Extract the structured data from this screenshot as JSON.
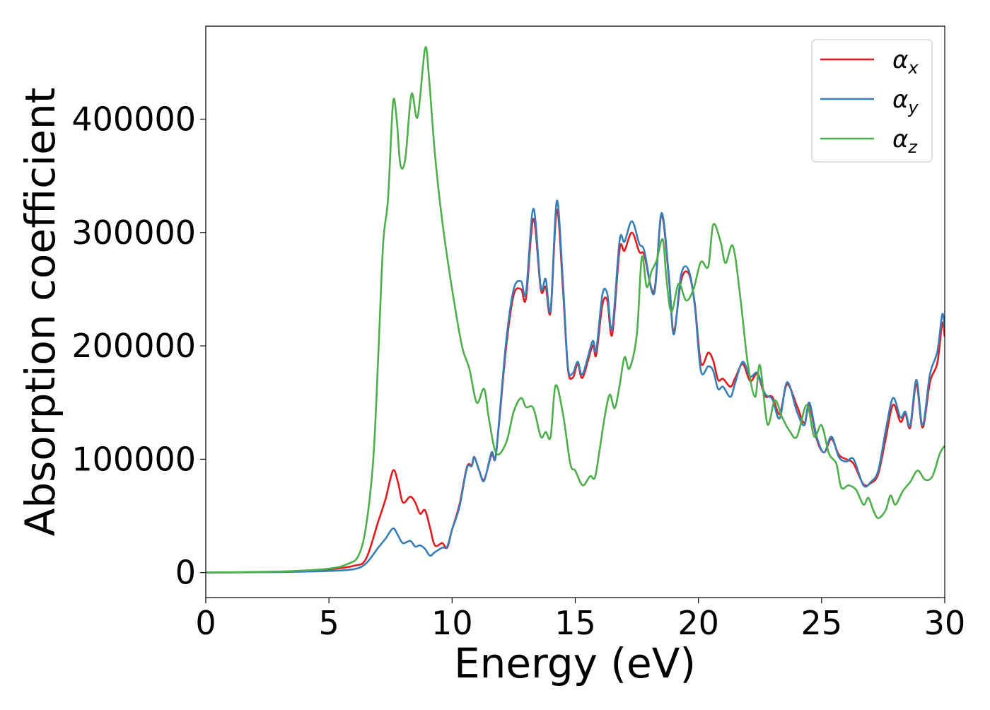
{
  "chart_data": {
    "type": "line",
    "title": "",
    "xlabel": "Energy (eV)",
    "ylabel": "Absorption coefficient",
    "xlim": [
      0,
      30
    ],
    "ylim": [
      -22000,
      482000
    ],
    "x_ticks": [
      "0",
      "5",
      "10",
      "15",
      "20",
      "25",
      "30"
    ],
    "y_ticks": [
      "0",
      "100000",
      "200000",
      "300000",
      "400000"
    ],
    "grid": false,
    "legend_position": "top-right",
    "series": [
      {
        "name": "αx",
        "symbol": "α",
        "subscript": "x",
        "color": "#e41a1c",
        "points": [
          [
            0,
            0
          ],
          [
            3,
            800
          ],
          [
            5,
            3000
          ],
          [
            6,
            6000
          ],
          [
            6.5,
            12000
          ],
          [
            7,
            45000
          ],
          [
            7.3,
            65000
          ],
          [
            7.6,
            90000
          ],
          [
            7.8,
            80000
          ],
          [
            8.0,
            62000
          ],
          [
            8.3,
            67000
          ],
          [
            8.5,
            62000
          ],
          [
            8.7,
            52000
          ],
          [
            8.9,
            55000
          ],
          [
            9.1,
            40000
          ],
          [
            9.3,
            24000
          ],
          [
            9.6,
            26000
          ],
          [
            9.8,
            22000
          ],
          [
            10,
            38000
          ],
          [
            10.3,
            60000
          ],
          [
            10.6,
            93000
          ],
          [
            10.8,
            95000
          ],
          [
            10.9,
            102000
          ],
          [
            11.1,
            90000
          ],
          [
            11.3,
            82000
          ],
          [
            11.6,
            104000
          ],
          [
            11.75,
            100000
          ],
          [
            11.9,
            130000
          ],
          [
            12.2,
            200000
          ],
          [
            12.5,
            245000
          ],
          [
            12.8,
            250000
          ],
          [
            13.0,
            242000
          ],
          [
            13.3,
            312000
          ],
          [
            13.6,
            250000
          ],
          [
            13.8,
            252000
          ],
          [
            14.0,
            230000
          ],
          [
            14.25,
            320000
          ],
          [
            14.5,
            250000
          ],
          [
            14.7,
            180000
          ],
          [
            14.9,
            172000
          ],
          [
            15.1,
            184000
          ],
          [
            15.3,
            172000
          ],
          [
            15.7,
            200000
          ],
          [
            15.85,
            192000
          ],
          [
            16.1,
            236000
          ],
          [
            16.3,
            240000
          ],
          [
            16.5,
            210000
          ],
          [
            16.8,
            285000
          ],
          [
            17.0,
            284000
          ],
          [
            17.3,
            300000
          ],
          [
            17.6,
            283000
          ],
          [
            17.8,
            280000
          ],
          [
            18.2,
            248000
          ],
          [
            18.5,
            315000
          ],
          [
            18.8,
            260000
          ],
          [
            19.0,
            213000
          ],
          [
            19.3,
            258000
          ],
          [
            19.6,
            264000
          ],
          [
            19.85,
            238000
          ],
          [
            20.1,
            185000
          ],
          [
            20.4,
            194000
          ],
          [
            20.6,
            187000
          ],
          [
            20.8,
            170000
          ],
          [
            21.0,
            171000
          ],
          [
            21.3,
            164000
          ],
          [
            21.5,
            172000
          ],
          [
            21.8,
            184000
          ],
          [
            22.1,
            169000
          ],
          [
            22.4,
            175000
          ],
          [
            22.7,
            156000
          ],
          [
            23.0,
            155000
          ],
          [
            23.3,
            140000
          ],
          [
            23.6,
            166000
          ],
          [
            24.0,
            147000
          ],
          [
            24.3,
            132000
          ],
          [
            24.5,
            148000
          ],
          [
            24.8,
            118000
          ],
          [
            25.1,
            106000
          ],
          [
            25.4,
            118000
          ],
          [
            25.7,
            104000
          ],
          [
            26.0,
            100000
          ],
          [
            26.3,
            96000
          ],
          [
            26.7,
            78000
          ],
          [
            27.0,
            79000
          ],
          [
            27.3,
            87000
          ],
          [
            27.6,
            118000
          ],
          [
            27.9,
            148000
          ],
          [
            28.2,
            133000
          ],
          [
            28.4,
            140000
          ],
          [
            28.6,
            128000
          ],
          [
            28.85,
            166000
          ],
          [
            29.1,
            128000
          ],
          [
            29.4,
            168000
          ],
          [
            29.7,
            185000
          ],
          [
            29.9,
            220000
          ],
          [
            30,
            208000
          ]
        ]
      },
      {
        "name": "αy",
        "symbol": "α",
        "subscript": "y",
        "color": "#377eb8",
        "points": [
          [
            0,
            0
          ],
          [
            3,
            500
          ],
          [
            5,
            1500
          ],
          [
            6,
            3000
          ],
          [
            6.5,
            8000
          ],
          [
            7,
            22000
          ],
          [
            7.3,
            30000
          ],
          [
            7.6,
            39000
          ],
          [
            7.8,
            33000
          ],
          [
            8.0,
            26000
          ],
          [
            8.3,
            28000
          ],
          [
            8.5,
            23000
          ],
          [
            8.7,
            24000
          ],
          [
            8.9,
            21000
          ],
          [
            9.1,
            15000
          ],
          [
            9.3,
            18000
          ],
          [
            9.6,
            22000
          ],
          [
            9.8,
            23000
          ],
          [
            10,
            38000
          ],
          [
            10.3,
            58000
          ],
          [
            10.6,
            92000
          ],
          [
            10.8,
            94000
          ],
          [
            10.9,
            102000
          ],
          [
            11.1,
            90000
          ],
          [
            11.3,
            81000
          ],
          [
            11.6,
            106000
          ],
          [
            11.75,
            100000
          ],
          [
            11.9,
            132000
          ],
          [
            12.2,
            205000
          ],
          [
            12.5,
            250000
          ],
          [
            12.8,
            257000
          ],
          [
            13.0,
            247000
          ],
          [
            13.3,
            321000
          ],
          [
            13.6,
            252000
          ],
          [
            13.8,
            259000
          ],
          [
            14.0,
            232000
          ],
          [
            14.25,
            328000
          ],
          [
            14.5,
            256000
          ],
          [
            14.7,
            182000
          ],
          [
            14.9,
            176000
          ],
          [
            15.1,
            186000
          ],
          [
            15.3,
            175000
          ],
          [
            15.7,
            204000
          ],
          [
            15.85,
            196000
          ],
          [
            16.1,
            245000
          ],
          [
            16.3,
            246000
          ],
          [
            16.5,
            215000
          ],
          [
            16.8,
            293000
          ],
          [
            17.0,
            292000
          ],
          [
            17.3,
            310000
          ],
          [
            17.6,
            290000
          ],
          [
            17.8,
            284000
          ],
          [
            18.2,
            246000
          ],
          [
            18.5,
            317000
          ],
          [
            18.8,
            262000
          ],
          [
            19.0,
            210000
          ],
          [
            19.3,
            263000
          ],
          [
            19.6,
            267000
          ],
          [
            19.85,
            236000
          ],
          [
            20.1,
            178000
          ],
          [
            20.4,
            182000
          ],
          [
            20.6,
            178000
          ],
          [
            20.8,
            162000
          ],
          [
            21.0,
            164000
          ],
          [
            21.3,
            155000
          ],
          [
            21.5,
            168000
          ],
          [
            21.8,
            186000
          ],
          [
            22.1,
            173000
          ],
          [
            22.4,
            176000
          ],
          [
            22.7,
            158000
          ],
          [
            23.0,
            153000
          ],
          [
            23.3,
            136000
          ],
          [
            23.6,
            168000
          ],
          [
            24.0,
            142000
          ],
          [
            24.3,
            130000
          ],
          [
            24.5,
            150000
          ],
          [
            24.8,
            120000
          ],
          [
            25.1,
            106000
          ],
          [
            25.4,
            120000
          ],
          [
            25.7,
            102000
          ],
          [
            26.0,
            98000
          ],
          [
            26.3,
            100000
          ],
          [
            26.7,
            77000
          ],
          [
            27.0,
            80000
          ],
          [
            27.3,
            90000
          ],
          [
            27.6,
            125000
          ],
          [
            27.9,
            154000
          ],
          [
            28.2,
            137000
          ],
          [
            28.4,
            142000
          ],
          [
            28.6,
            130000
          ],
          [
            28.85,
            170000
          ],
          [
            29.1,
            130000
          ],
          [
            29.4,
            175000
          ],
          [
            29.7,
            195000
          ],
          [
            29.9,
            228000
          ],
          [
            30,
            214000
          ]
        ]
      },
      {
        "name": "αz",
        "symbol": "α",
        "subscript": "z",
        "color": "#4daf4a",
        "points": [
          [
            0,
            0
          ],
          [
            3,
            1000
          ],
          [
            5,
            3500
          ],
          [
            5.8,
            8000
          ],
          [
            6.2,
            15000
          ],
          [
            6.5,
            40000
          ],
          [
            6.8,
            100000
          ],
          [
            7.0,
            190000
          ],
          [
            7.2,
            290000
          ],
          [
            7.4,
            330000
          ],
          [
            7.6,
            414000
          ],
          [
            7.75,
            400000
          ],
          [
            7.9,
            360000
          ],
          [
            8.1,
            365000
          ],
          [
            8.35,
            422000
          ],
          [
            8.6,
            402000
          ],
          [
            8.9,
            462000
          ],
          [
            9.05,
            440000
          ],
          [
            9.3,
            370000
          ],
          [
            9.6,
            310000
          ],
          [
            10.0,
            250000
          ],
          [
            10.4,
            200000
          ],
          [
            10.7,
            180000
          ],
          [
            11.0,
            150000
          ],
          [
            11.3,
            162000
          ],
          [
            11.5,
            135000
          ],
          [
            11.8,
            105000
          ],
          [
            12.2,
            115000
          ],
          [
            12.5,
            142000
          ],
          [
            12.8,
            154000
          ],
          [
            13.0,
            146000
          ],
          [
            13.3,
            145000
          ],
          [
            13.6,
            120000
          ],
          [
            13.8,
            124000
          ],
          [
            14.0,
            120000
          ],
          [
            14.2,
            165000
          ],
          [
            14.5,
            140000
          ],
          [
            14.8,
            96000
          ],
          [
            15.0,
            90000
          ],
          [
            15.3,
            77000
          ],
          [
            15.6,
            85000
          ],
          [
            15.8,
            84000
          ],
          [
            16.0,
            110000
          ],
          [
            16.2,
            138000
          ],
          [
            16.4,
            157000
          ],
          [
            16.6,
            145000
          ],
          [
            16.8,
            165000
          ],
          [
            17.0,
            190000
          ],
          [
            17.2,
            180000
          ],
          [
            17.5,
            210000
          ],
          [
            17.7,
            278000
          ],
          [
            17.9,
            252000
          ],
          [
            18.1,
            266000
          ],
          [
            18.3,
            275000
          ],
          [
            18.55,
            294000
          ],
          [
            18.7,
            260000
          ],
          [
            18.9,
            230000
          ],
          [
            19.2,
            255000
          ],
          [
            19.5,
            240000
          ],
          [
            19.8,
            250000
          ],
          [
            20.1,
            274000
          ],
          [
            20.4,
            270000
          ],
          [
            20.6,
            307000
          ],
          [
            20.9,
            292000
          ],
          [
            21.1,
            273000
          ],
          [
            21.4,
            288000
          ],
          [
            21.7,
            243000
          ],
          [
            22.0,
            185000
          ],
          [
            22.3,
            155000
          ],
          [
            22.5,
            183000
          ],
          [
            22.8,
            131000
          ],
          [
            23.1,
            152000
          ],
          [
            23.4,
            137000
          ],
          [
            23.7,
            125000
          ],
          [
            24.0,
            120000
          ],
          [
            24.4,
            148000
          ],
          [
            24.7,
            120000
          ],
          [
            25.0,
            130000
          ],
          [
            25.3,
            105000
          ],
          [
            25.6,
            96000
          ],
          [
            25.8,
            75000
          ],
          [
            26.1,
            77000
          ],
          [
            26.4,
            73000
          ],
          [
            26.7,
            60000
          ],
          [
            26.9,
            66000
          ],
          [
            27.1,
            55000
          ],
          [
            27.3,
            48000
          ],
          [
            27.6,
            55000
          ],
          [
            27.8,
            68000
          ],
          [
            28.0,
            60000
          ],
          [
            28.3,
            72000
          ],
          [
            28.6,
            80000
          ],
          [
            28.9,
            90000
          ],
          [
            29.2,
            82000
          ],
          [
            29.5,
            85000
          ],
          [
            29.8,
            105000
          ],
          [
            30,
            112000
          ]
        ]
      }
    ]
  }
}
